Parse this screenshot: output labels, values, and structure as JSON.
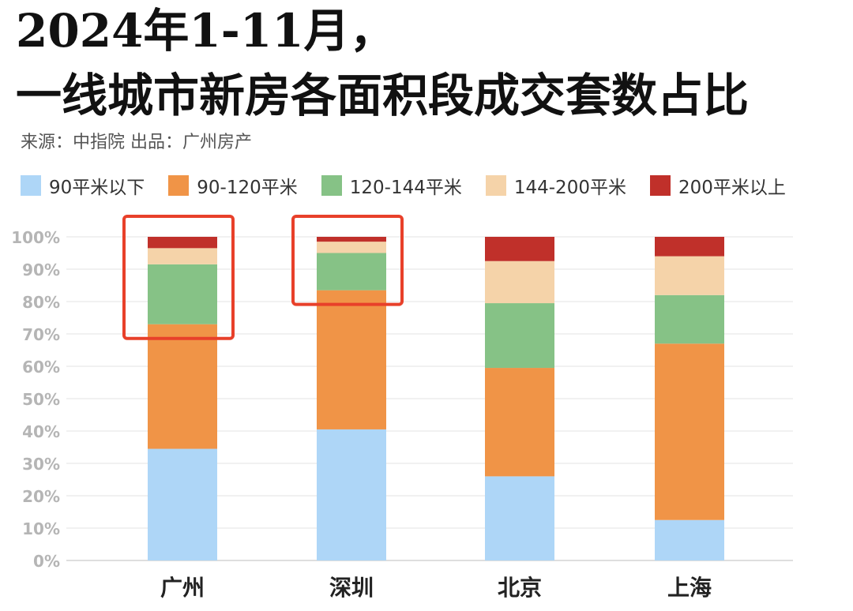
{
  "title_line1": "2024年1-11月，",
  "title_line2": "一线城市新房各面积段成交套数占比",
  "source_text": "来源：中指院    出品：广州房产",
  "chart_data": {
    "type": "bar",
    "stacked": true,
    "categories": [
      "广州",
      "深圳",
      "北京",
      "上海"
    ],
    "series": [
      {
        "name": "90平米以下",
        "color": "#aed6f7",
        "values": [
          34.5,
          40.5,
          26.0,
          12.5
        ]
      },
      {
        "name": "90-120平米",
        "color": "#f09447",
        "values": [
          38.5,
          43.0,
          33.5,
          54.5
        ]
      },
      {
        "name": "120-144平米",
        "color": "#86c286",
        "values": [
          18.5,
          11.5,
          20.0,
          15.0
        ]
      },
      {
        "name": "144-200平米",
        "color": "#f5d3a9",
        "values": [
          5.0,
          3.5,
          13.0,
          12.0
        ]
      },
      {
        "name": "200平米以上",
        "color": "#c0302a",
        "values": [
          3.5,
          1.5,
          7.5,
          6.0
        ]
      }
    ],
    "y_ticks": [
      "0%",
      "10%",
      "20%",
      "30%",
      "40%",
      "50%",
      "60%",
      "70%",
      "80%",
      "90%",
      "100%"
    ],
    "ylim": [
      0,
      100
    ],
    "grid": true,
    "legend_position": "top",
    "highlight_color": "#e8402a",
    "highlighted_categories": [
      "广州",
      "深圳"
    ]
  }
}
